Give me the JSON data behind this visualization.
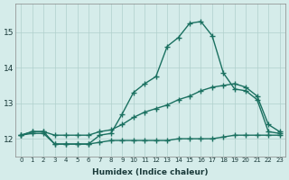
{
  "xlabel": "Humidex (Indice chaleur)",
  "background_color": "#d5ecea",
  "grid_color": "#b0d0cc",
  "line_color": "#1a7060",
  "xlim": [
    -0.5,
    23.5
  ],
  "ylim": [
    11.5,
    15.8
  ],
  "xticks": [
    0,
    1,
    2,
    3,
    4,
    5,
    6,
    7,
    8,
    9,
    10,
    11,
    12,
    13,
    14,
    15,
    16,
    17,
    18,
    19,
    20,
    21,
    22,
    23
  ],
  "yticks": [
    12,
    13,
    14,
    15
  ],
  "line1_x": [
    0,
    1,
    2,
    3,
    4,
    5,
    6,
    7,
    8,
    9,
    10,
    11,
    12,
    13,
    14,
    15,
    16,
    17,
    18,
    19,
    20,
    21,
    22,
    23
  ],
  "line1_y": [
    12.1,
    12.2,
    12.2,
    11.85,
    11.85,
    11.85,
    11.85,
    12.1,
    12.15,
    12.7,
    13.3,
    13.55,
    13.75,
    14.6,
    14.85,
    15.25,
    15.3,
    14.9,
    13.85,
    13.4,
    13.35,
    13.1,
    12.2,
    12.15
  ],
  "line2_x": [
    0,
    1,
    2,
    3,
    4,
    5,
    6,
    7,
    8,
    9,
    10,
    11,
    12,
    13,
    14,
    15,
    16,
    17,
    18,
    19,
    20,
    21,
    22,
    23
  ],
  "line2_y": [
    12.1,
    12.2,
    12.2,
    12.1,
    12.1,
    12.1,
    12.1,
    12.2,
    12.25,
    12.4,
    12.6,
    12.75,
    12.85,
    12.95,
    13.1,
    13.2,
    13.35,
    13.45,
    13.5,
    13.55,
    13.45,
    13.2,
    12.4,
    12.2
  ],
  "line3_x": [
    0,
    1,
    2,
    3,
    4,
    5,
    6,
    7,
    8,
    9,
    10,
    11,
    12,
    13,
    14,
    15,
    16,
    17,
    18,
    19,
    20,
    21,
    22,
    23
  ],
  "line3_y": [
    12.1,
    12.15,
    12.15,
    11.85,
    11.85,
    11.85,
    11.85,
    11.9,
    11.95,
    11.95,
    11.95,
    11.95,
    11.95,
    11.95,
    12.0,
    12.0,
    12.0,
    12.0,
    12.05,
    12.1,
    12.1,
    12.1,
    12.1,
    12.1
  ]
}
